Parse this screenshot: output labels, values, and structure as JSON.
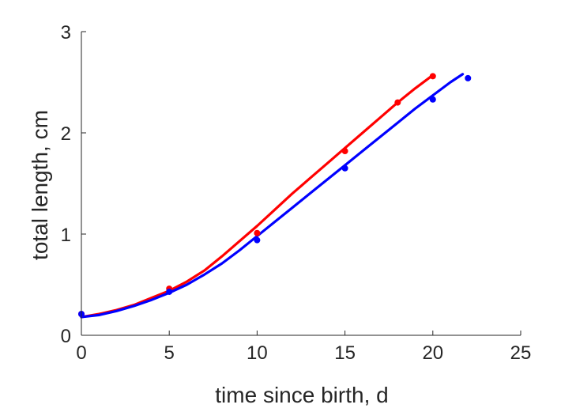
{
  "chart_data": {
    "type": "line",
    "title": "",
    "xlabel": "time since birth, d",
    "ylabel": "total length, cm",
    "xlim": [
      0,
      25
    ],
    "ylim": [
      0,
      3
    ],
    "xticks": [
      0,
      5,
      10,
      15,
      20,
      25
    ],
    "yticks": [
      0,
      1,
      2,
      3
    ],
    "grid": false,
    "legend": "none",
    "series": [
      {
        "color": "#ff0000",
        "points": {
          "x": [
            0,
            5,
            10,
            15,
            18,
            20
          ],
          "y": [
            0.21,
            0.46,
            1.01,
            1.82,
            2.3,
            2.56
          ]
        },
        "curve": {
          "x": [
            0,
            1,
            2,
            3,
            4,
            5,
            6,
            7,
            8,
            9,
            10,
            11,
            12,
            13,
            14,
            15,
            16,
            17,
            18,
            19,
            20
          ],
          "y": [
            0.18,
            0.21,
            0.25,
            0.3,
            0.37,
            0.44,
            0.53,
            0.64,
            0.78,
            0.93,
            1.08,
            1.24,
            1.4,
            1.55,
            1.7,
            1.85,
            2.0,
            2.15,
            2.3,
            2.44,
            2.57
          ]
        }
      },
      {
        "color": "#0000ff",
        "points": {
          "x": [
            0,
            5,
            10,
            15,
            20,
            22
          ],
          "y": [
            0.21,
            0.43,
            0.94,
            1.65,
            2.33,
            2.54
          ]
        },
        "curve": {
          "x": [
            0,
            1,
            2,
            3,
            4,
            5,
            6,
            7,
            8,
            9,
            10,
            11,
            12,
            13,
            14,
            15,
            16,
            17,
            18,
            19,
            20,
            21,
            21.7
          ],
          "y": [
            0.18,
            0.2,
            0.24,
            0.29,
            0.35,
            0.42,
            0.5,
            0.6,
            0.71,
            0.84,
            0.98,
            1.12,
            1.26,
            1.4,
            1.54,
            1.68,
            1.82,
            1.96,
            2.1,
            2.24,
            2.37,
            2.5,
            2.58
          ]
        }
      }
    ]
  }
}
